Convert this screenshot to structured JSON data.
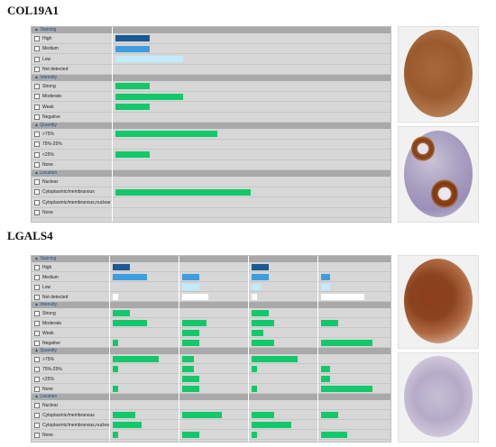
{
  "figures": [
    {
      "gene": "COL19A1",
      "sections": [
        {
          "title": "Staining",
          "rows": [
            {
              "label": "High",
              "values": [
                1
              ],
              "color": "dark"
            },
            {
              "label": "Medium",
              "values": [
                1
              ],
              "color": "mid"
            },
            {
              "label": "Low",
              "values": [
                2
              ],
              "color": "light"
            },
            {
              "label": "Not detected",
              "values": [
                0
              ],
              "color": "white"
            }
          ]
        },
        {
          "title": "Intensity",
          "rows": [
            {
              "label": "Strong",
              "values": [
                1
              ],
              "color": "green"
            },
            {
              "label": "Moderate",
              "values": [
                2
              ],
              "color": "green"
            },
            {
              "label": "Weak",
              "values": [
                1
              ],
              "color": "green"
            },
            {
              "label": "Negative",
              "values": [
                0
              ],
              "color": "green"
            }
          ]
        },
        {
          "title": "Quantity",
          "rows": [
            {
              "label": ">75%",
              "values": [
                3
              ],
              "color": "green"
            },
            {
              "label": "75%-25%",
              "values": [
                0
              ],
              "color": "green"
            },
            {
              "label": "<25%",
              "values": [
                1
              ],
              "color": "green"
            },
            {
              "label": "None",
              "values": [
                0
              ],
              "color": "green"
            }
          ]
        },
        {
          "title": "Location",
          "rows": [
            {
              "label": "Nuclear",
              "values": [
                0
              ],
              "color": "green"
            },
            {
              "label": "Cytoplasmic/membranous",
              "values": [
                4
              ],
              "color": "green"
            },
            {
              "label": "Cytoplasmic/membranous,nuclear",
              "values": [
                0
              ],
              "color": "green"
            },
            {
              "label": "None",
              "values": [
                0
              ],
              "color": "green"
            }
          ]
        }
      ]
    },
    {
      "gene": "LGALS4",
      "sections": [
        {
          "title": "Staining",
          "rows": [
            {
              "label": "High",
              "values": [
                1,
                0,
                1,
                0
              ],
              "color": "dark"
            },
            {
              "label": "Medium",
              "values": [
                2,
                1,
                1,
                0.5
              ],
              "color": "mid"
            },
            {
              "label": "Low",
              "values": [
                0,
                1,
                0.5,
                0.5
              ],
              "color": "light"
            },
            {
              "label": "Not detected",
              "values": [
                0.3,
                1.5,
                0.3,
                2.5
              ],
              "color": "white"
            }
          ]
        },
        {
          "title": "Intensity",
          "rows": [
            {
              "label": "Strong",
              "values": [
                1,
                0,
                1,
                0
              ],
              "color": "green"
            },
            {
              "label": "Moderate",
              "values": [
                2,
                1.4,
                1.3,
                1
              ],
              "color": "green"
            },
            {
              "label": "Weak",
              "values": [
                0,
                1,
                0.7,
                0
              ],
              "color": "green"
            },
            {
              "label": "Negative",
              "values": [
                0.3,
                1,
                1.3,
                3
              ],
              "color": "green"
            }
          ]
        },
        {
          "title": "Quantity",
          "rows": [
            {
              "label": ">75%",
              "values": [
                2.7,
                0.7,
                2.7,
                0
              ],
              "color": "green"
            },
            {
              "label": "75%-25%",
              "values": [
                0.3,
                0.7,
                0.3,
                0.5
              ],
              "color": "green"
            },
            {
              "label": "<25%",
              "values": [
                0,
                1,
                0,
                0.5
              ],
              "color": "green"
            },
            {
              "label": "None",
              "values": [
                0.3,
                1,
                0.3,
                3
              ],
              "color": "green"
            }
          ]
        },
        {
          "title": "Location",
          "rows": [
            {
              "label": "Nuclear",
              "values": [
                0,
                0,
                0,
                0
              ],
              "color": "green"
            },
            {
              "label": "Cytoplasmic/membranous",
              "values": [
                1.3,
                2.3,
                1.3,
                1
              ],
              "color": "green"
            },
            {
              "label": "Cytoplasmic/membranous,nuclear",
              "values": [
                1.7,
                0,
                2.3,
                0
              ],
              "color": "green"
            },
            {
              "label": "None",
              "values": [
                0.3,
                1,
                0.3,
                1.5
              ],
              "color": "green"
            }
          ]
        }
      ]
    }
  ],
  "colors": {
    "dark": "#1b5a93",
    "mid": "#3e9de0",
    "light": "#c0ecfb",
    "white": "#ffffff",
    "green": "#12c86a",
    "section_text": "#1e4d8c"
  }
}
